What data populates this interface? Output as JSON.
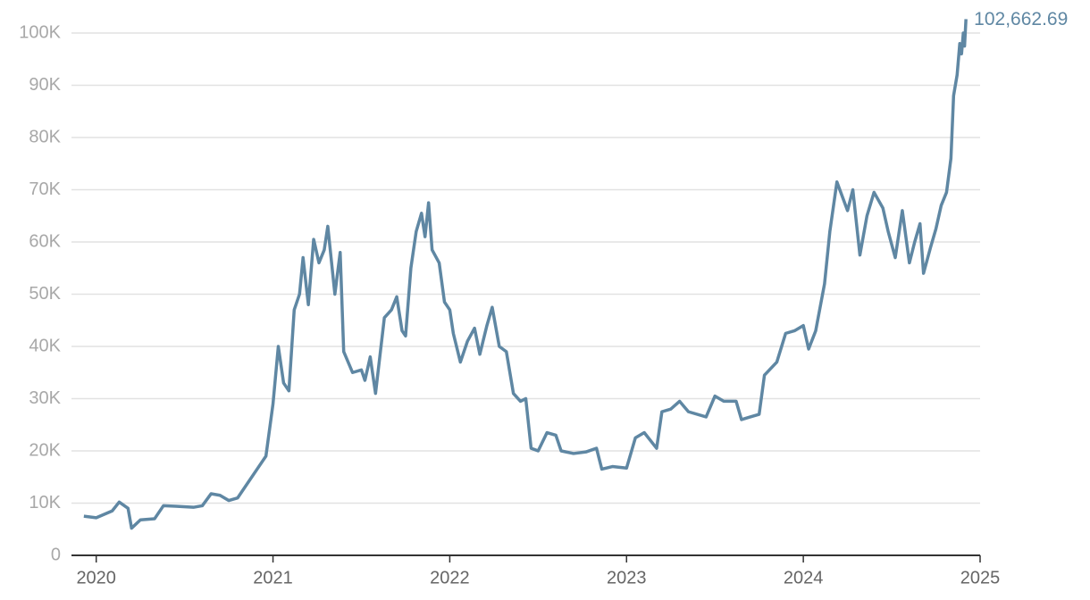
{
  "chart_data": {
    "type": "line",
    "color": "#5f87a3",
    "grid": true,
    "xlim": [
      2019.86,
      2025
    ],
    "xticks": [
      2020,
      2021,
      2022,
      2023,
      2024,
      2025
    ],
    "ylim": [
      0,
      100000
    ],
    "yticks": [
      0,
      {
        "value": 10000,
        "label": "10K"
      },
      {
        "value": 20000,
        "label": "20K"
      },
      {
        "value": 30000,
        "label": "30K"
      },
      {
        "value": 40000,
        "label": "40K"
      },
      {
        "value": 50000,
        "label": "50K"
      },
      {
        "value": 60000,
        "label": "60K"
      },
      {
        "value": 70000,
        "label": "70K"
      },
      {
        "value": 80000,
        "label": "80K"
      },
      {
        "value": 90000,
        "label": "90K"
      },
      {
        "value": 100000,
        "label": "100K"
      }
    ],
    "x": [
      2019.93,
      2020.0,
      2020.09,
      2020.13,
      2020.18,
      2020.2,
      2020.25,
      2020.33,
      2020.38,
      2020.45,
      2020.55,
      2020.6,
      2020.65,
      2020.7,
      2020.75,
      2020.8,
      2020.85,
      2020.92,
      2020.96,
      2021.0,
      2021.03,
      2021.06,
      2021.09,
      2021.12,
      2021.15,
      2021.17,
      2021.2,
      2021.23,
      2021.26,
      2021.29,
      2021.31,
      2021.35,
      2021.38,
      2021.4,
      2021.45,
      2021.5,
      2021.52,
      2021.55,
      2021.58,
      2021.63,
      2021.67,
      2021.7,
      2021.73,
      2021.75,
      2021.78,
      2021.81,
      2021.84,
      2021.86,
      2021.88,
      2021.9,
      2021.94,
      2021.97,
      2022.0,
      2022.02,
      2022.06,
      2022.1,
      2022.14,
      2022.17,
      2022.21,
      2022.24,
      2022.28,
      2022.32,
      2022.36,
      2022.4,
      2022.43,
      2022.46,
      2022.5,
      2022.55,
      2022.6,
      2022.63,
      2022.7,
      2022.77,
      2022.83,
      2022.86,
      2022.92,
      2023.0,
      2023.05,
      2023.1,
      2023.17,
      2023.2,
      2023.25,
      2023.3,
      2023.35,
      2023.45,
      2023.5,
      2023.55,
      2023.62,
      2023.65,
      2023.7,
      2023.75,
      2023.78,
      2023.85,
      2023.9,
      2023.95,
      2024.0,
      2024.03,
      2024.07,
      2024.12,
      2024.15,
      2024.19,
      2024.25,
      2024.28,
      2024.32,
      2024.36,
      2024.4,
      2024.45,
      2024.48,
      2024.52,
      2024.56,
      2024.6,
      2024.63,
      2024.66,
      2024.68,
      2024.72,
      2024.75,
      2024.78,
      2024.81,
      2024.835,
      2024.85,
      2024.87,
      2024.885,
      2024.895,
      2024.905,
      2024.912,
      2024.92
    ],
    "values": [
      7500,
      7200,
      8500,
      10200,
      9000,
      5200,
      6800,
      7000,
      9500,
      9400,
      9200,
      9500,
      11800,
      11500,
      10500,
      11000,
      13500,
      17000,
      19000,
      29000,
      40000,
      33000,
      31500,
      47000,
      50000,
      57000,
      48000,
      60500,
      56000,
      58500,
      63000,
      50000,
      58000,
      39000,
      35000,
      35500,
      33500,
      38000,
      31000,
      45500,
      47000,
      49500,
      43000,
      42000,
      55000,
      62000,
      65500,
      61000,
      67500,
      58500,
      56000,
      48500,
      47000,
      42500,
      37000,
      41000,
      43500,
      38500,
      44000,
      47500,
      40000,
      39000,
      31000,
      29500,
      30000,
      20500,
      20000,
      23500,
      23000,
      20000,
      19500,
      19800,
      20500,
      16500,
      17000,
      16700,
      22500,
      23500,
      20500,
      27500,
      28000,
      29500,
      27500,
      26500,
      30500,
      29500,
      29500,
      26000,
      26500,
      27000,
      34500,
      37000,
      42500,
      43000,
      44000,
      39500,
      43000,
      52000,
      62000,
      71500,
      66000,
      70000,
      57500,
      65000,
      69500,
      66500,
      62000,
      57000,
      66000,
      56000,
      60000,
      63500,
      54000,
      59000,
      62500,
      67000,
      69500,
      76000,
      88000,
      92000,
      98000,
      96000,
      100000,
      97500,
      102662.69
    ],
    "annotation": {
      "x": 2024.92,
      "value": 102662.69,
      "label": "102,662.69"
    }
  }
}
